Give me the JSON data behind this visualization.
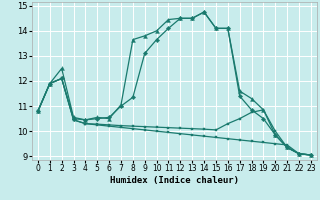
{
  "xlabel": "Humidex (Indice chaleur)",
  "bg_color": "#c8ecec",
  "grid_color": "#ffffff",
  "line_color": "#1a7a6e",
  "xlim_min": -0.5,
  "xlim_max": 23.5,
  "ylim_min": 8.85,
  "ylim_max": 15.15,
  "xticks": [
    0,
    1,
    2,
    3,
    4,
    5,
    6,
    7,
    8,
    9,
    10,
    11,
    12,
    13,
    14,
    15,
    16,
    17,
    18,
    19,
    20,
    21,
    22,
    23
  ],
  "yticks": [
    9,
    10,
    11,
    12,
    13,
    14,
    15
  ],
  "series": [
    {
      "x": [
        0,
        1,
        2,
        3,
        4,
        5,
        6,
        7,
        8,
        9,
        10,
        11,
        12,
        13,
        14,
        15,
        16,
        17,
        18,
        19,
        20,
        21,
        22,
        23
      ],
      "y": [
        10.8,
        11.9,
        12.1,
        10.5,
        10.45,
        10.5,
        10.55,
        11.0,
        11.35,
        13.1,
        13.65,
        14.1,
        14.5,
        14.5,
        14.75,
        14.1,
        14.1,
        11.4,
        10.85,
        10.5,
        9.85,
        9.35,
        9.1,
        9.05
      ],
      "marker": "D",
      "markersize": 2.2,
      "lw": 0.9
    },
    {
      "x": [
        0,
        1,
        2,
        3,
        4,
        5,
        6,
        7,
        8,
        9,
        10,
        11,
        12,
        13,
        14,
        15,
        16,
        17,
        18,
        19,
        20,
        21,
        22,
        23
      ],
      "y": [
        10.8,
        11.9,
        12.5,
        10.55,
        10.45,
        10.55,
        10.5,
        11.05,
        13.65,
        13.8,
        14.0,
        14.45,
        14.5,
        14.5,
        14.75,
        14.1,
        14.1,
        11.6,
        11.3,
        10.85,
        9.85,
        9.35,
        9.1,
        9.05
      ],
      "marker": "^",
      "markersize": 2.8,
      "lw": 0.9
    },
    {
      "x": [
        0,
        1,
        2,
        3,
        4,
        5,
        6,
        7,
        8,
        9,
        10,
        11,
        12,
        13,
        14,
        15,
        16,
        17,
        18,
        19,
        20,
        21,
        22,
        23
      ],
      "y": [
        10.8,
        11.9,
        12.1,
        10.45,
        10.3,
        10.28,
        10.25,
        10.22,
        10.2,
        10.18,
        10.16,
        10.14,
        10.12,
        10.1,
        10.08,
        10.05,
        10.3,
        10.5,
        10.75,
        10.85,
        10.0,
        9.35,
        9.1,
        9.05
      ],
      "marker": "s",
      "markersize": 1.8,
      "lw": 0.9
    },
    {
      "x": [
        0,
        1,
        2,
        3,
        4,
        5,
        6,
        7,
        8,
        9,
        10,
        11,
        12,
        13,
        14,
        15,
        16,
        17,
        18,
        19,
        20,
        21,
        22,
        23
      ],
      "y": [
        10.8,
        11.9,
        12.1,
        10.45,
        10.3,
        10.25,
        10.2,
        10.15,
        10.1,
        10.05,
        10.0,
        9.95,
        9.9,
        9.85,
        9.8,
        9.75,
        9.7,
        9.65,
        9.6,
        9.55,
        9.5,
        9.45,
        9.1,
        9.05
      ],
      "marker": "s",
      "markersize": 1.8,
      "lw": 0.9
    }
  ]
}
